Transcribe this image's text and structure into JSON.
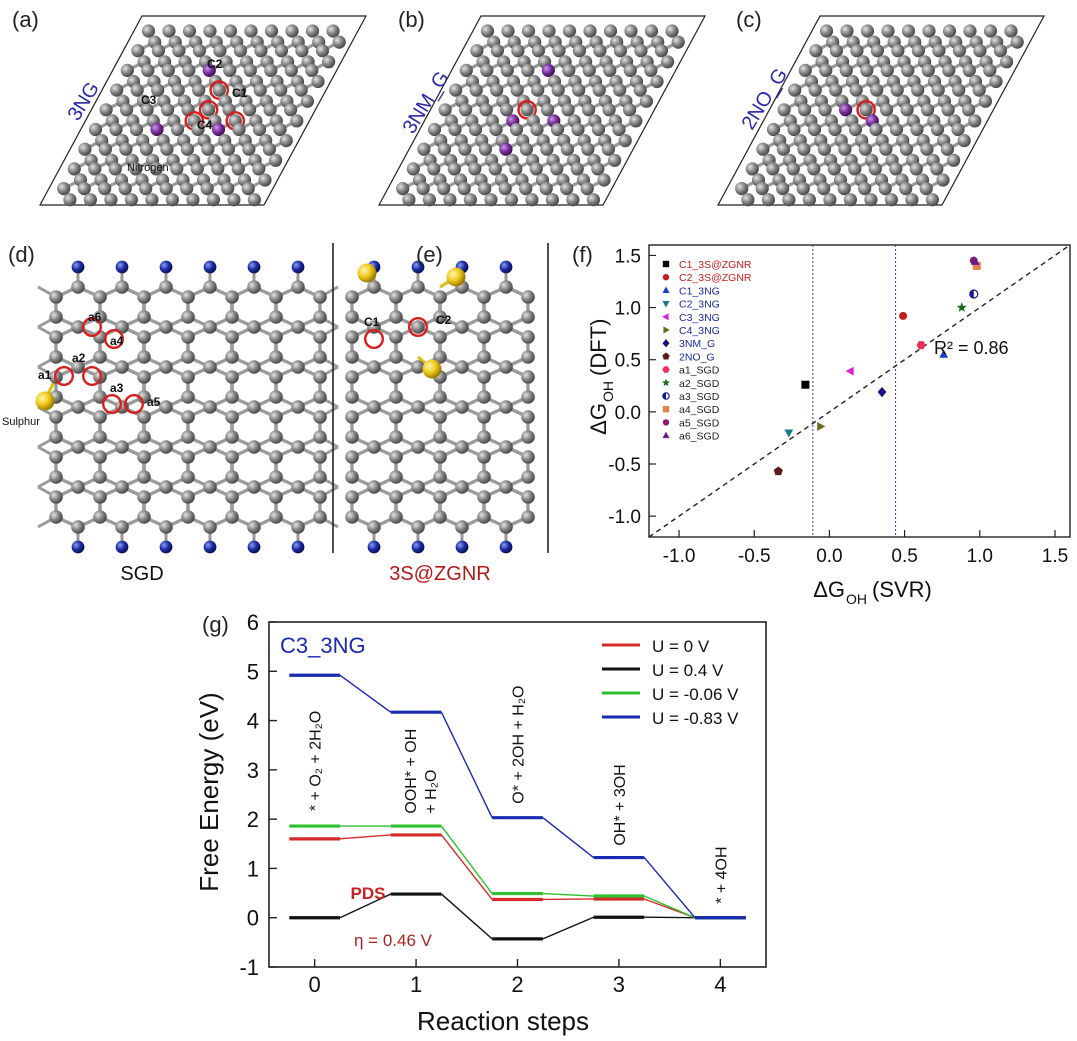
{
  "panels": {
    "a": {
      "label": "(a)",
      "title": "3NG",
      "labels": [
        "C1",
        "C2",
        "C3",
        "C4",
        "Nitrogen"
      ]
    },
    "b": {
      "label": "(b)",
      "title": "3NM_G"
    },
    "c": {
      "label": "(c)",
      "title": "2NO_G"
    },
    "d": {
      "label": "(d)",
      "caption": "SGD",
      "labels": [
        "a1",
        "a2",
        "a3",
        "a4",
        "a5",
        "a6",
        "Sulphur"
      ]
    },
    "e": {
      "label": "(e)",
      "caption": "3S@ZGNR",
      "labels": [
        "C1",
        "C2"
      ]
    },
    "f": {
      "label": "(f)"
    },
    "g": {
      "label": "(g)"
    }
  },
  "colors": {
    "carbon": "#7f7f7f",
    "nitrogen": "#7b2fa0",
    "hydrogen": "#15249a",
    "sulphur": "#f2cf1a",
    "highlight": "#d81e1e",
    "blue_label": "#2a2aa8",
    "red_label": "#b11818"
  },
  "chart_data": [
    {
      "type": "scatter",
      "xlabel_main": "ΔG",
      "xlabel_sub": "OH",
      "xlabel_tail": " (SVR)",
      "ylabel_main": "ΔG",
      "ylabel_sub": "OH",
      "ylabel_tail": " (DFT)",
      "xlim": [
        -1.2,
        1.6
      ],
      "ylim": [
        -1.2,
        1.6
      ],
      "xticks": [
        -1.0,
        -0.5,
        0.0,
        0.5,
        1.0,
        1.5
      ],
      "xtick_labels": [
        "-1.0",
        "-0.5",
        "0.0",
        "0.5",
        "1.0",
        "1.5"
      ],
      "yticks": [
        -1.0,
        -0.5,
        0.0,
        0.5,
        1.0,
        1.5
      ],
      "ytick_labels": [
        "-1.0",
        "-0.5",
        "0.0",
        "0.5",
        "1.0",
        "1.5"
      ],
      "vlines": [
        -0.11,
        0.44
      ],
      "fit_line": [
        [
          -1.2,
          -1.2
        ],
        [
          1.6,
          1.6
        ]
      ],
      "annotation": "R² = 0.86",
      "series": [
        {
          "name": "C1_3S@ZGNR",
          "label_color": "#c41c1c",
          "color": "#000000",
          "marker": "square",
          "x": -0.16,
          "y": 0.26
        },
        {
          "name": "C2_3S@ZGNR",
          "label_color": "#c41c1c",
          "color": "#c41c1c",
          "marker": "circle",
          "x": 0.49,
          "y": 0.92
        },
        {
          "name": "C1_3NG",
          "label_color": "#1a2aa0",
          "color": "#1f3cc8",
          "marker": "triangle-up",
          "x": 0.76,
          "y": 0.55
        },
        {
          "name": "C2_3NG",
          "label_color": "#1a2aa0",
          "color": "#1a7a8a",
          "marker": "triangle-down",
          "x": -0.27,
          "y": -0.2
        },
        {
          "name": "C3_3NG",
          "label_color": "#1a2aa0",
          "color": "#e020d0",
          "marker": "triangle-left",
          "x": 0.14,
          "y": 0.39
        },
        {
          "name": "C4_3NG",
          "label_color": "#1a2aa0",
          "color": "#6b6b1a",
          "marker": "triangle-right",
          "x": -0.06,
          "y": -0.14
        },
        {
          "name": "3NM_G",
          "label_color": "#1a2aa0",
          "color": "#15157a",
          "marker": "diamond",
          "x": 0.35,
          "y": 0.19
        },
        {
          "name": "2NO_G",
          "label_color": "#1a2aa0",
          "color": "#5a1a1a",
          "marker": "pentagon",
          "x": -0.34,
          "y": -0.57
        },
        {
          "name": "a1_SGD",
          "label_color": "#222222",
          "color": "#e8305a",
          "marker": "hexagon",
          "x": 0.61,
          "y": 0.64
        },
        {
          "name": "a2_SGD",
          "label_color": "#222222",
          "color": "#1a6a1a",
          "marker": "star",
          "x": 0.88,
          "y": 1.0
        },
        {
          "name": "a3_SGD",
          "label_color": "#222222",
          "color": "#1a1a8a",
          "marker": "half-circle",
          "x": 0.96,
          "y": 1.13
        },
        {
          "name": "a4_SGD",
          "label_color": "#222222",
          "color": "#e8804a",
          "marker": "square",
          "x": 0.98,
          "y": 1.4
        },
        {
          "name": "a5_SGD",
          "label_color": "#222222",
          "color": "#8a1a6a",
          "marker": "circle",
          "x": 0.96,
          "y": 1.45
        },
        {
          "name": "a6_SGD",
          "label_color": "#222222",
          "color": "#6a1a8a",
          "marker": "triangle-up",
          "x": 0.97,
          "y": 1.44
        }
      ]
    },
    {
      "type": "line",
      "title": "C3_3NG",
      "xlabel": "Reaction steps",
      "ylabel": "Free Energy (eV)",
      "xlim": [
        -0.45,
        4.45
      ],
      "ylim": [
        -1,
        6
      ],
      "xticks": [
        0,
        1,
        2,
        3,
        4
      ],
      "xtick_labels": [
        "0",
        "1",
        "2",
        "3",
        "4"
      ],
      "yticks": [
        -1,
        0,
        1,
        2,
        3,
        4,
        5,
        6
      ],
      "ytick_labels": [
        "-1",
        "0",
        "1",
        "2",
        "3",
        "4",
        "5",
        "6"
      ],
      "level_halfwidth": 0.25,
      "series": [
        {
          "name": "U = 0 V",
          "color": "#d42a2a",
          "values": [
            1.6,
            1.68,
            0.37,
            0.38,
            0
          ]
        },
        {
          "name": "U = 0.4 V",
          "color": "#111111",
          "values": [
            0,
            0.48,
            -0.43,
            0.01,
            0
          ]
        },
        {
          "name": "U = -0.06 V",
          "color": "#2ec02e",
          "values": [
            1.86,
            1.86,
            0.49,
            0.44,
            0
          ]
        },
        {
          "name": "U = -0.83 V",
          "color": "#1a2ab0",
          "values": [
            4.92,
            4.17,
            2.03,
            1.22,
            0
          ]
        }
      ],
      "step_labels": [
        {
          "step": 0,
          "y": 2.0,
          "text": "* + O₂ + 2H₂O"
        },
        {
          "step": 1,
          "y": 1.95,
          "text": "OOH* + OH"
        },
        {
          "step": 1,
          "y": 1.95,
          "text": "+ H₂O"
        },
        {
          "step": 2,
          "y": 2.15,
          "text": "O* + 2OH + H₂O"
        },
        {
          "step": 3,
          "y": 1.3,
          "text": "OH* + 3OH"
        },
        {
          "step": 4,
          "y": 0.12,
          "text": "* + 4OH"
        }
      ],
      "pds_label": "PDS",
      "eta_label": "η = 0.46 V"
    }
  ]
}
